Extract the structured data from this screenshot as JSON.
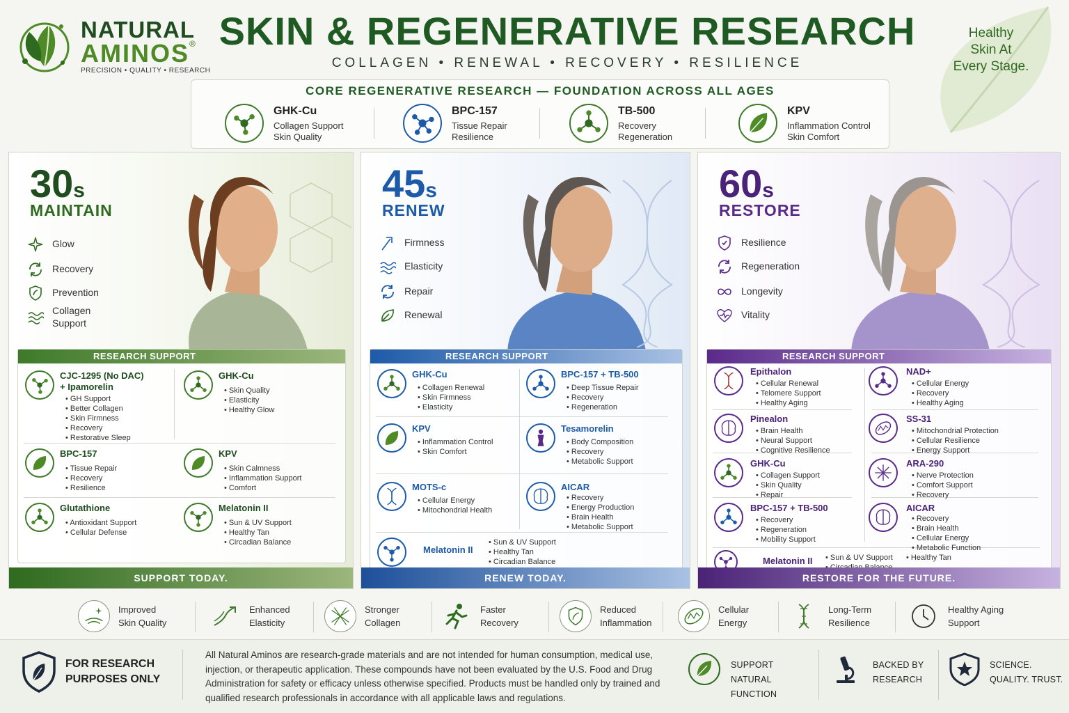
{
  "brand": {
    "line1": "NATURAL",
    "line2": "AMINOS",
    "reg": "®",
    "tagline": "PRECISION • QUALITY • RESEARCH"
  },
  "header": {
    "title": "SKIN & REGENERATIVE RESEARCH",
    "subtitle": "COLLAGEN • RENEWAL • RECOVERY • RESILIENCE",
    "tagline_lines": [
      "Healthy",
      "Skin At",
      "Every Stage."
    ]
  },
  "core": {
    "title": "CORE REGENERATIVE RESEARCH — FOUNDATION ACROSS ALL AGES",
    "items": [
      {
        "name": "GHK-Cu",
        "lines": [
          "Collagen Support",
          "Skin Quality"
        ],
        "icon": "molecule-icon"
      },
      {
        "name": "BPC-157",
        "lines": [
          "Tissue Repair",
          "Resilience"
        ],
        "icon": "molecule-icon"
      },
      {
        "name": "TB-500",
        "lines": [
          "Recovery",
          "Regeneration"
        ],
        "icon": "molecule-icon"
      },
      {
        "name": "KPV",
        "lines": [
          "Inflammation Control",
          "Skin Comfort"
        ],
        "icon": "leaf-icon"
      }
    ]
  },
  "panels": [
    {
      "age": "30",
      "suffix": "s",
      "stage": "MAINTAIN",
      "accent": "#2e6a1f",
      "features": [
        {
          "label": "Glow",
          "icon": "sparkle-icon"
        },
        {
          "label": "Recovery",
          "icon": "refresh-icon"
        },
        {
          "label": "Prevention",
          "icon": "shield-icon"
        },
        {
          "label": "Collagen\nSupport",
          "icon": "waves-icon"
        }
      ],
      "research_label": "RESEARCH SUPPORT",
      "compounds": [
        {
          "name": "CJC-1295 (No DAC)\n+ Ipamorelin",
          "items": [
            "GH Support",
            "Better Collagen",
            "Skin Firmness",
            "Recovery",
            "Restorative Sleep"
          ]
        },
        {
          "name": "GHK-Cu",
          "items": [
            "Skin Quality",
            "Elasticity",
            "Healthy Glow"
          ]
        },
        {
          "name": "BPC-157",
          "items": [
            "Tissue Repair",
            "Recovery",
            "Resilience"
          ]
        },
        {
          "name": "KPV",
          "items": [
            "Skin Calmness",
            "Inflammation Support",
            "Comfort"
          ]
        },
        {
          "name": "Glutathione",
          "items": [
            "Antioxidant Support",
            "Cellular Defense"
          ]
        },
        {
          "name": "Melatonin II",
          "items": [
            "Sun & UV Support",
            "Healthy Tan",
            "Circadian Balance"
          ]
        }
      ],
      "footer": "SUPPORT TODAY."
    },
    {
      "age": "45",
      "suffix": "s",
      "stage": "RENEW",
      "accent": "#1d5aa8",
      "features": [
        {
          "label": "Firmness",
          "icon": "arrow-up-icon"
        },
        {
          "label": "Elasticity",
          "icon": "waves-icon"
        },
        {
          "label": "Repair",
          "icon": "refresh-icon"
        },
        {
          "label": "Renewal",
          "icon": "leaf-icon"
        }
      ],
      "research_label": "RESEARCH SUPPORT",
      "compounds": [
        {
          "name": "GHK-Cu",
          "items": [
            "Collagen Renewal",
            "Skin Firmness",
            "Elasticity"
          ]
        },
        {
          "name": "BPC-157 + TB-500",
          "items": [
            "Deep Tissue Repair",
            "Recovery",
            "Regeneration"
          ]
        },
        {
          "name": "KPV",
          "items": [
            "Inflammation Control",
            "Skin Comfort"
          ]
        },
        {
          "name": "Tesamorelin",
          "items": [
            "Body Composition",
            "Recovery",
            "Metabolic Support"
          ]
        },
        {
          "name": "MOTS-c",
          "items": [
            "Cellular Energy",
            "Mitochondrial Health"
          ]
        },
        {
          "name": "AICAR",
          "items": [
            "Recovery",
            "Energy Production",
            "Brain Health",
            "Metabolic Support"
          ]
        },
        {
          "name": "Melatonin II",
          "items": [
            "Sun & UV Support",
            "Healthy Tan",
            "Circadian Balance"
          ]
        }
      ],
      "footer": "RENEW TODAY."
    },
    {
      "age": "60",
      "suffix": "s",
      "stage": "RESTORE",
      "accent": "#5a2a8a",
      "features": [
        {
          "label": "Resilience",
          "icon": "shield-icon"
        },
        {
          "label": "Regeneration",
          "icon": "refresh-icon"
        },
        {
          "label": "Longevity",
          "icon": "infinity-icon"
        },
        {
          "label": "Vitality",
          "icon": "heart-icon"
        }
      ],
      "research_label": "RESEARCH SUPPORT",
      "compounds": [
        {
          "name": "Epithalon",
          "items": [
            "Cellular Renewal",
            "Telomere Support",
            "Healthy Aging"
          ]
        },
        {
          "name": "NAD+",
          "items": [
            "Cellular Energy",
            "Recovery",
            "Healthy Aging"
          ]
        },
        {
          "name": "Pinealon",
          "items": [
            "Brain Health",
            "Neural Support",
            "Cognitive Resilience"
          ]
        },
        {
          "name": "SS-31",
          "items": [
            "Mitochondrial Protection",
            "Cellular Resilience",
            "Energy Support"
          ]
        },
        {
          "name": "GHK-Cu",
          "items": [
            "Collagen Support",
            "Skin Quality",
            "Repair"
          ]
        },
        {
          "name": "ARA-290",
          "items": [
            "Nerve Protection",
            "Comfort Support",
            "Recovery"
          ]
        },
        {
          "name": "BPC-157 + TB-500",
          "items": [
            "Recovery",
            "Regeneration",
            "Mobility Support"
          ]
        },
        {
          "name": "AICAR",
          "items": [
            "Recovery",
            "Brain Health",
            "Cellular Energy",
            "Metabolic Function"
          ]
        },
        {
          "name": "Melatonin II",
          "items": [
            "Sun & UV Support",
            "Circadian Balance",
            "Healthy Tan"
          ]
        }
      ],
      "footer": "RESTORE FOR THE FUTURE."
    }
  ],
  "benefits": [
    {
      "label": "Improved\nSkin Quality",
      "icon": "skin-icon"
    },
    {
      "label": "Enhanced\nElasticity",
      "icon": "trend-up-icon"
    },
    {
      "label": "Stronger\nCollagen",
      "icon": "mesh-icon"
    },
    {
      "label": "Faster\nRecovery",
      "icon": "runner-icon"
    },
    {
      "label": "Reduced\nInflammation",
      "icon": "shield-icon"
    },
    {
      "label": "Cellular\nEnergy",
      "icon": "mitochondria-icon"
    },
    {
      "label": "Long-Term\nResilience",
      "icon": "dna-icon"
    },
    {
      "label": "Healthy Aging\nSupport",
      "icon": "clock-icon"
    }
  ],
  "footer": {
    "research_label": "FOR RESEARCH\nPURPOSES ONLY",
    "disclaimer": "All Natural Aminos are research-grade materials and are not intended for human consumption, medical use, injection, or therapeutic application. These compounds have not been evaluated by the U.S. Food and Drug Administration for safety or efficacy unless otherwise specified. Products must be handled only by trained and qualified research professionals in accordance with all applicable laws and regulations.",
    "badges": [
      {
        "label": "SUPPORT\nNATURAL FUNCTION",
        "icon": "leaf-icon"
      },
      {
        "label": "BACKED BY\nRESEARCH",
        "icon": "microscope-icon"
      },
      {
        "label": "SCIENCE.\nQUALITY. TRUST.",
        "icon": "star-shield-icon"
      }
    ]
  }
}
